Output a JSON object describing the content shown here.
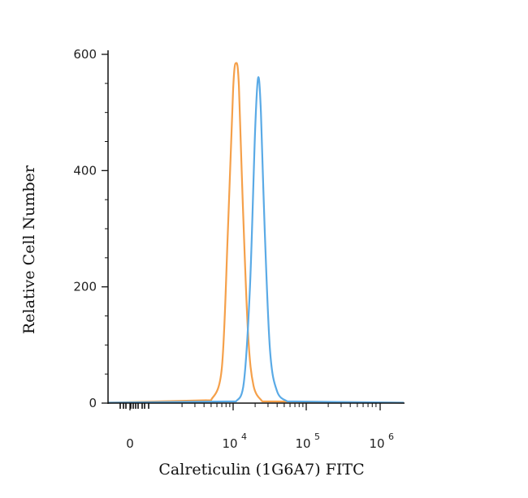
{
  "chart_data": {
    "type": "line",
    "xlabel": "Calreticulin (1G6A7) FITC",
    "ylabel": "Relative Cell Number",
    "x_scale": "biexponential",
    "ylim": [
      0,
      600
    ],
    "y_ticks": [
      0,
      200,
      400,
      600
    ],
    "x_ticks": [
      {
        "base": "0",
        "exp": ""
      },
      {
        "base": "10",
        "exp": "4"
      },
      {
        "base": "10",
        "exp": "5"
      },
      {
        "base": "10",
        "exp": "6"
      }
    ],
    "grid": false,
    "series": [
      {
        "color": "#f5a04a",
        "x": [
          5000,
          7000,
          8500,
          10000,
          11000,
          12000,
          13500,
          16000,
          19000,
          25000
        ],
        "y": [
          5,
          60,
          300,
          540,
          585,
          545,
          350,
          120,
          30,
          3
        ]
      },
      {
        "color": "#5aaae6",
        "x": [
          11000,
          14000,
          17000,
          20000,
          22000,
          24000,
          27000,
          32000,
          40000,
          55000
        ],
        "y": [
          3,
          35,
          200,
          470,
          560,
          500,
          300,
          90,
          20,
          3
        ]
      }
    ]
  }
}
